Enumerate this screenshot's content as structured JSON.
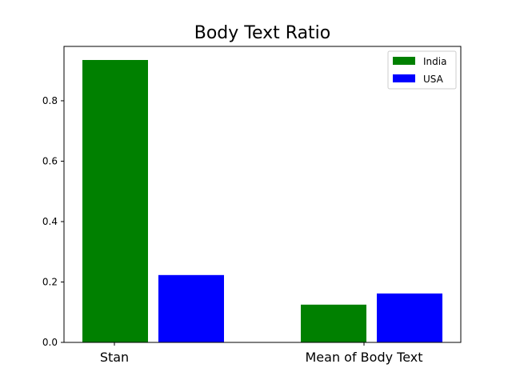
{
  "chart_data": {
    "type": "bar",
    "title": "Body Text Ratio",
    "xlabel": "",
    "ylabel": "",
    "categories": [
      "Stan",
      "Mean of Body Text"
    ],
    "series": [
      {
        "name": "India",
        "color": "#008000",
        "values": [
          0.935,
          0.125
        ]
      },
      {
        "name": "USA",
        "color": "#0000ff",
        "values": [
          0.223,
          0.162
        ]
      }
    ],
    "ylim": [
      0,
      0.98
    ],
    "yticks": [
      "0.0",
      "0.2",
      "0.4",
      "0.6",
      "0.8"
    ],
    "grid": false,
    "legend_position": "upper right"
  }
}
